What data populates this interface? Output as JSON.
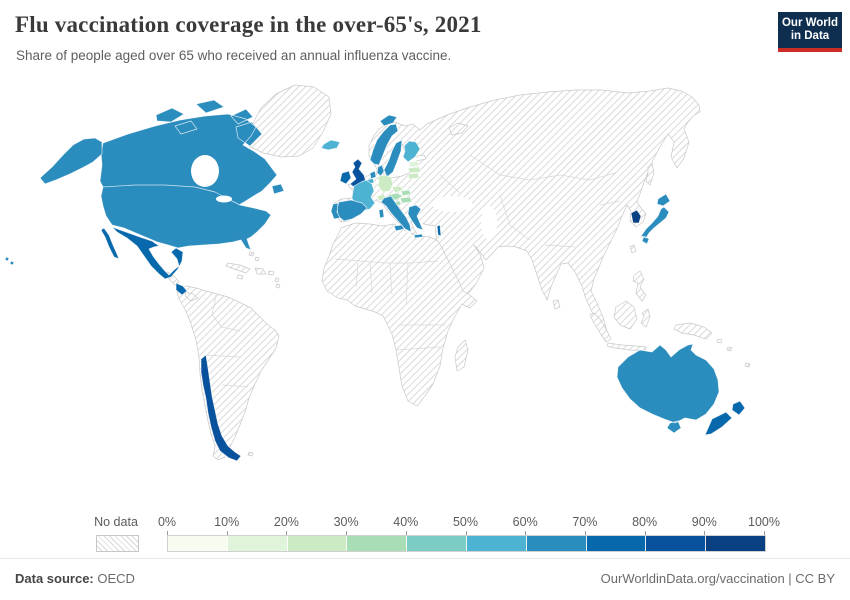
{
  "header": {
    "title": "Flu vaccination coverage in the over-65's, 2021",
    "subtitle": "Share of people aged over 65 who received an annual influenza vaccine.",
    "logo": {
      "line1": "Our World",
      "line2": "in Data",
      "bg_color": "#0e2e50",
      "bar_color": "#cb2d26"
    }
  },
  "legend": {
    "no_data_label": "No data",
    "ticks": [
      "0%",
      "10%",
      "20%",
      "30%",
      "40%",
      "50%",
      "60%",
      "70%",
      "80%",
      "90%",
      "100%"
    ],
    "colors": [
      "#f7fcf0",
      "#e0f3db",
      "#ccebc5",
      "#a8ddb5",
      "#7bccc4",
      "#4eb3d3",
      "#2b8cbe",
      "#0868ac",
      "#08519c",
      "#084081"
    ]
  },
  "footer": {
    "source_label": "Data source:",
    "source_value": "OECD",
    "right_text": "OurWorldinData.org/vaccination | CC BY"
  },
  "chart_data": {
    "type": "choropleth-map",
    "title": "Flu vaccination coverage in the over-65's, 2021",
    "subtitle": "Share of people aged over 65 who received an annual influenza vaccine.",
    "unit": "% of people aged over 65",
    "legend_buckets": [
      "0-10%",
      "10-20%",
      "20-30%",
      "30-40%",
      "40-50%",
      "50-60%",
      "60-70%",
      "70-80%",
      "80-90%",
      "90-100%"
    ],
    "no_data_note": "All other countries (most of Africa, Asia, Eastern Europe, South America) are shown hatched = No data",
    "countries": [
      {
        "name": "United States",
        "slug": "united-states",
        "bucket": 7,
        "range": "60-70%"
      },
      {
        "name": "Canada",
        "slug": "canada",
        "bucket": 7,
        "range": "60-70%"
      },
      {
        "name": "Mexico",
        "slug": "mexico",
        "bucket": 8,
        "range": "70-80%"
      },
      {
        "name": "Costa Rica",
        "slug": "costa-rica",
        "bucket": 8,
        "range": "70-80%"
      },
      {
        "name": "Chile",
        "slug": "chile",
        "bucket": 9,
        "range": "80-90%"
      },
      {
        "name": "Iceland",
        "slug": "iceland",
        "bucket": 6,
        "range": "50-60%"
      },
      {
        "name": "Ireland",
        "slug": "ireland",
        "bucket": 8,
        "range": "70-80%"
      },
      {
        "name": "United Kingdom",
        "slug": "united-kingdom",
        "bucket": 9,
        "range": "80-90%"
      },
      {
        "name": "Norway",
        "slug": "norway",
        "bucket": 7,
        "range": "60-70%"
      },
      {
        "name": "Sweden",
        "slug": "sweden",
        "bucket": 7,
        "range": "60-70%"
      },
      {
        "name": "Denmark",
        "slug": "denmark",
        "bucket": 7,
        "range": "60-70%"
      },
      {
        "name": "Finland",
        "slug": "finland",
        "bucket": 6,
        "range": "50-60%"
      },
      {
        "name": "Estonia",
        "slug": "estonia",
        "bucket": 2,
        "range": "10-20%"
      },
      {
        "name": "Latvia",
        "slug": "latvia",
        "bucket": 3,
        "range": "20-30%"
      },
      {
        "name": "Lithuania",
        "slug": "lithuania",
        "bucket": 3,
        "range": "20-30%"
      },
      {
        "name": "Netherlands",
        "slug": "netherlands",
        "bucket": 7,
        "range": "60-70%"
      },
      {
        "name": "Belgium",
        "slug": "belgium",
        "bucket": 6,
        "range": "50-60%"
      },
      {
        "name": "Germany",
        "slug": "germany",
        "bucket": 3,
        "range": "20-30%"
      },
      {
        "name": "France",
        "slug": "france",
        "bucket": 6,
        "range": "50-60%"
      },
      {
        "name": "Switzerland",
        "slug": "switzerland",
        "bucket": 3,
        "range": "20-30%"
      },
      {
        "name": "Czechia",
        "slug": "czechia",
        "bucket": 3,
        "range": "20-30%"
      },
      {
        "name": "Austria",
        "slug": "austria",
        "bucket": 4,
        "range": "30-40%"
      },
      {
        "name": "Slovakia",
        "slug": "slovakia",
        "bucket": 4,
        "range": "30-40%"
      },
      {
        "name": "Hungary",
        "slug": "hungary",
        "bucket": 4,
        "range": "30-40%"
      },
      {
        "name": "Slovenia",
        "slug": "slovenia",
        "bucket": 4,
        "range": "30-40%"
      },
      {
        "name": "Spain",
        "slug": "spain",
        "bucket": 7,
        "range": "60-70%"
      },
      {
        "name": "Portugal",
        "slug": "portugal",
        "bucket": 7,
        "range": "60-70%"
      },
      {
        "name": "Italy",
        "slug": "italy",
        "bucket": 7,
        "range": "60-70%"
      },
      {
        "name": "Greece",
        "slug": "greece",
        "bucket": 7,
        "range": "60-70%"
      },
      {
        "name": "Israel",
        "slug": "israel",
        "bucket": 8,
        "range": "70-80%"
      },
      {
        "name": "South Korea",
        "slug": "south-korea",
        "bucket": 10,
        "range": "90-100%"
      },
      {
        "name": "Japan",
        "slug": "japan",
        "bucket": 7,
        "range": "60-70%"
      },
      {
        "name": "Australia",
        "slug": "australia",
        "bucket": 7,
        "range": "60-70%"
      },
      {
        "name": "New Zealand",
        "slug": "new-zealand",
        "bucket": 8,
        "range": "70-80%"
      }
    ]
  },
  "map_meta": {
    "hatch_line_color": "#d9d9d9",
    "outline_color": "#c9c9c9",
    "inner_border_color": "#d8d8d8"
  }
}
